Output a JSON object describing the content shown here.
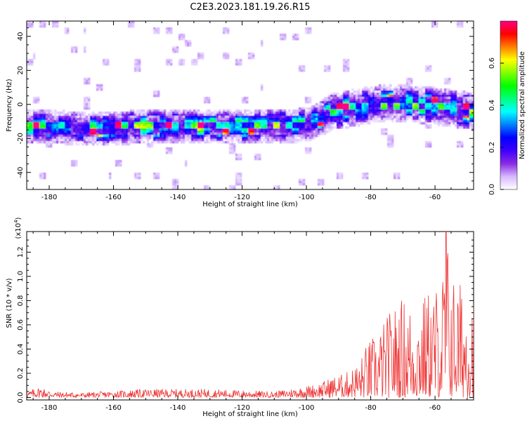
{
  "figure_title": "C2E3.2023.181.19.26.R15",
  "chart_data": [
    {
      "type": "heatmap",
      "title": "C2E3.2023.181.19.26.R15",
      "xlabel": "Height of straight line (km)",
      "ylabel": "Frequency (Hz)",
      "xlim": [
        -187,
        -48
      ],
      "ylim": [
        -50,
        49
      ],
      "x_ticks": [
        -180,
        -160,
        -140,
        -120,
        -100,
        -80,
        -60
      ],
      "y_ticks": [
        -40,
        -20,
        0,
        20,
        40
      ],
      "colorbar": {
        "label": "Normalized spectral amplitude",
        "range": [
          0,
          0.8
        ],
        "ticks": [
          "0.0",
          "0.2",
          "0.4",
          "0.6"
        ],
        "colormap": [
          "#ffffff",
          "#d6b8ff",
          "#8a2be2",
          "#3d00ff",
          "#0000ff",
          "#0080ff",
          "#00ffff",
          "#00ff80",
          "#00ff00",
          "#80ff00",
          "#ffff00",
          "#ff8000",
          "#ff0000",
          "#ff0080"
        ]
      },
      "ridge": [
        {
          "x": -187,
          "y": -13
        },
        {
          "x": -180,
          "y": -13
        },
        {
          "x": -170,
          "y": -14
        },
        {
          "x": -160,
          "y": -14
        },
        {
          "x": -150,
          "y": -13
        },
        {
          "x": -140,
          "y": -13
        },
        {
          "x": -130,
          "y": -13
        },
        {
          "x": -120,
          "y": -13
        },
        {
          "x": -110,
          "y": -13
        },
        {
          "x": -100,
          "y": -12
        },
        {
          "x": -95,
          "y": -8
        },
        {
          "x": -92,
          "y": -4
        },
        {
          "x": -85,
          "y": -2
        },
        {
          "x": -80,
          "y": 0
        },
        {
          "x": -70,
          "y": 1
        },
        {
          "x": -60,
          "y": -1
        },
        {
          "x": -48,
          "y": -4
        }
      ]
    },
    {
      "type": "line",
      "xlabel": "Height of straight line (km)",
      "ylabel": "SNR (10 * v/v)",
      "y_multiplier": "(x10",
      "y_multiplier_exp": "4",
      "y_multiplier_close": ")",
      "xlim": [
        -187,
        -48
      ],
      "ylim": [
        -0.02,
        1.37
      ],
      "x_ticks": [
        -180,
        -160,
        -140,
        -120,
        -100,
        -80,
        -60
      ],
      "y_ticks": [
        "0.0",
        "0.2",
        "0.4",
        "0.6",
        "0.8",
        "1.0",
        "1.2"
      ],
      "y_tick_values": [
        0,
        0.2,
        0.4,
        0.6,
        0.8,
        1.0,
        1.2
      ],
      "line_color": "#ee3333",
      "envelope": [
        {
          "x": -187,
          "y": 0.05
        },
        {
          "x": -183,
          "y": 0.09
        },
        {
          "x": -178,
          "y": 0.05
        },
        {
          "x": -170,
          "y": 0.04
        },
        {
          "x": -150,
          "y": 0.07
        },
        {
          "x": -130,
          "y": 0.07
        },
        {
          "x": -120,
          "y": 0.06
        },
        {
          "x": -110,
          "y": 0.05
        },
        {
          "x": -101,
          "y": 0.09
        },
        {
          "x": -96,
          "y": 0.12
        },
        {
          "x": -92,
          "y": 0.17
        },
        {
          "x": -88,
          "y": 0.2
        },
        {
          "x": -84,
          "y": 0.28
        },
        {
          "x": -81,
          "y": 0.46
        },
        {
          "x": -78,
          "y": 0.54
        },
        {
          "x": -74,
          "y": 0.72
        },
        {
          "x": -70,
          "y": 0.84
        },
        {
          "x": -66,
          "y": 0.76
        },
        {
          "x": -62,
          "y": 0.9
        },
        {
          "x": -58,
          "y": 0.97
        },
        {
          "x": -56.5,
          "y": 1.37
        },
        {
          "x": -54,
          "y": 1.0
        },
        {
          "x": -51,
          "y": 0.94
        },
        {
          "x": -48,
          "y": 0.94
        }
      ]
    }
  ]
}
